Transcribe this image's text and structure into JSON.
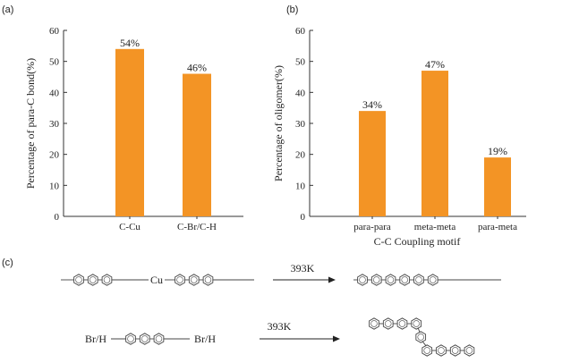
{
  "panel_labels": [
    "(a)",
    "(b)",
    "(c)"
  ],
  "chart_data": [
    {
      "type": "bar",
      "panel": "(a)",
      "categories": [
        "C-Cu",
        "C-Br/C-H"
      ],
      "values": [
        54,
        46
      ],
      "data_labels": [
        "54%",
        "46%"
      ],
      "ylabel": "Percentage of para-C bond(%)",
      "xlabel": "",
      "ylim": [
        0,
        60
      ],
      "yticks": [
        "0",
        "10",
        "20",
        "30",
        "40",
        "50",
        "60"
      ],
      "bar_color": "#f39425",
      "grid": false
    },
    {
      "type": "bar",
      "panel": "(b)",
      "categories": [
        "para-para",
        "meta-meta",
        "para-meta"
      ],
      "values": [
        34,
        47,
        19
      ],
      "data_labels": [
        "34%",
        "47%",
        "19%"
      ],
      "ylabel": "Percentage of oligomer(%)",
      "xlabel": "C-C Coupling motif",
      "ylim": [
        0,
        60
      ],
      "yticks": [
        "0",
        "10",
        "20",
        "30",
        "40",
        "50",
        "60"
      ],
      "bar_color": "#f39425",
      "grid": false
    }
  ],
  "scheme": {
    "row1": {
      "substituent": "Cu",
      "condition": "393K"
    },
    "row2": {
      "left_group": "Br/H",
      "right_group": "Br/H",
      "condition": "393K"
    }
  }
}
